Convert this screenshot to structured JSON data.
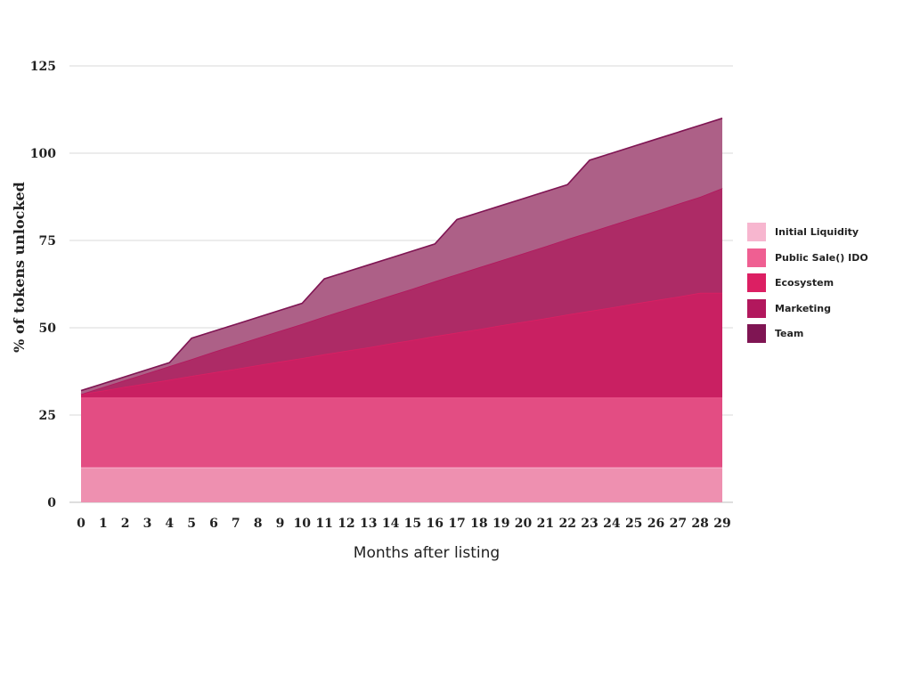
{
  "chart_data": {
    "type": "area",
    "stacked": true,
    "title": "",
    "xlabel": "Months after listing",
    "ylabel": "% of tokens unlocked",
    "x": [
      0,
      1,
      2,
      3,
      4,
      5,
      6,
      7,
      8,
      9,
      10,
      11,
      12,
      13,
      14,
      15,
      16,
      17,
      18,
      19,
      20,
      21,
      22,
      23,
      24,
      25,
      26,
      27,
      28,
      29
    ],
    "ylim": [
      0,
      125
    ],
    "yticks": [
      0,
      25,
      50,
      75,
      100,
      125
    ],
    "grid": true,
    "legend_position": "right",
    "series": [
      {
        "name": "Initial Liquidity",
        "color": "#f7b6cf",
        "fill": "#ee90b0",
        "values": [
          10,
          10,
          10,
          10,
          10,
          10,
          10,
          10,
          10,
          10,
          10,
          10,
          10,
          10,
          10,
          10,
          10,
          10,
          10,
          10,
          10,
          10,
          10,
          10,
          10,
          10,
          10,
          10,
          10,
          10
        ]
      },
      {
        "name": "Public Sale() IDO",
        "color": "#ef5f92",
        "fill": "#e34d83",
        "values": [
          30,
          30,
          30,
          30,
          30,
          30,
          30,
          30,
          30,
          30,
          30,
          30,
          30,
          30,
          30,
          30,
          30,
          30,
          30,
          30,
          30,
          30,
          30,
          30,
          30,
          30,
          30,
          30,
          30,
          30
        ]
      },
      {
        "name": "Ecosystem",
        "color": "#dc1f63",
        "fill": "#c92062",
        "values": [
          31,
          32.0,
          33.1,
          34.1,
          35.1,
          36.2,
          37.2,
          38.2,
          39.3,
          40.3,
          41.3,
          42.4,
          43.4,
          44.4,
          45.5,
          46.5,
          47.6,
          48.6,
          49.6,
          50.7,
          51.7,
          52.7,
          53.8,
          54.8,
          55.8,
          56.9,
          57.9,
          58.9,
          60.0,
          60.0
        ]
      },
      {
        "name": "Marketing",
        "color": "#b2185d",
        "fill": "#ad2b66",
        "values": [
          31,
          33.0,
          35.0,
          37.0,
          39.0,
          41.0,
          43.1,
          45.1,
          47.1,
          49.1,
          51.1,
          53.2,
          55.2,
          57.2,
          59.2,
          61.2,
          63.3,
          65.3,
          67.3,
          69.3,
          71.3,
          73.3,
          75.4,
          77.4,
          79.4,
          81.4,
          83.4,
          85.5,
          87.5,
          90.0
        ]
      },
      {
        "name": "Team",
        "color": "#7f1553",
        "fill": "#ad6087",
        "values": [
          32,
          34,
          36,
          38,
          40,
          47,
          49,
          51,
          53,
          55,
          57,
          64,
          66,
          68,
          70,
          72,
          74,
          81,
          83,
          85,
          87,
          89,
          91,
          98,
          100,
          102,
          104,
          106,
          108,
          110
        ]
      }
    ]
  }
}
